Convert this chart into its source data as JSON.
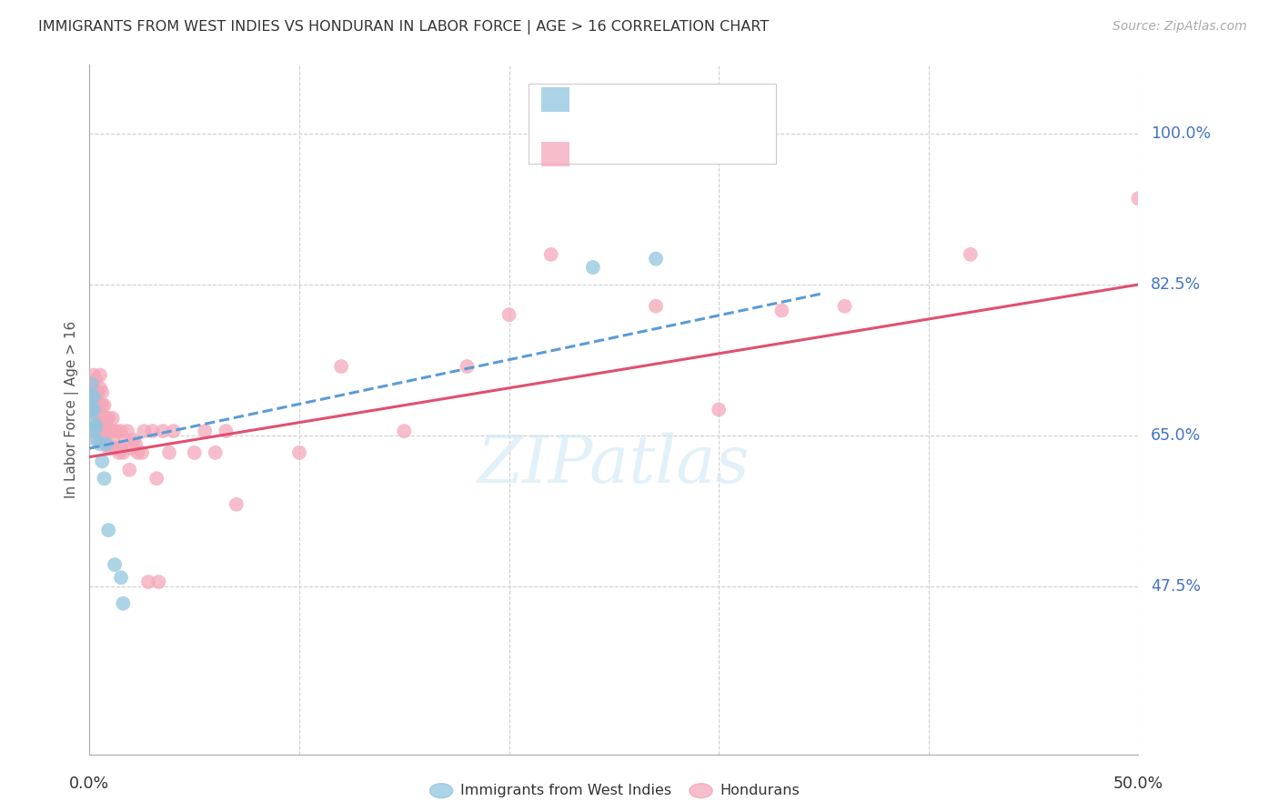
{
  "title": "IMMIGRANTS FROM WEST INDIES VS HONDURAN IN LABOR FORCE | AGE > 16 CORRELATION CHART",
  "source": "Source: ZipAtlas.com",
  "ylabel": "In Labor Force | Age > 16",
  "legend_label1": "Immigrants from West Indies",
  "legend_label2": "Hondurans",
  "ytick_labels": [
    "100.0%",
    "82.5%",
    "65.0%",
    "47.5%"
  ],
  "ytick_values": [
    1.0,
    0.825,
    0.65,
    0.475
  ],
  "xmin": 0.0,
  "xmax": 0.5,
  "ymin": 0.28,
  "ymax": 1.08,
  "blue_color": "#92c5de",
  "pink_color": "#f4a7b9",
  "blue_line_color": "#5b9bd5",
  "pink_line_color": "#e05070",
  "blue_scatter_x": [
    0.001,
    0.001,
    0.001,
    0.002,
    0.002,
    0.002,
    0.002,
    0.003,
    0.003,
    0.005,
    0.006,
    0.007,
    0.008,
    0.009,
    0.012,
    0.015,
    0.016,
    0.24,
    0.27
  ],
  "blue_scatter_y": [
    0.71,
    0.695,
    0.68,
    0.695,
    0.68,
    0.665,
    0.655,
    0.66,
    0.645,
    0.64,
    0.62,
    0.6,
    0.64,
    0.54,
    0.5,
    0.485,
    0.455,
    0.845,
    0.855
  ],
  "pink_scatter_x": [
    0.001,
    0.001,
    0.001,
    0.002,
    0.002,
    0.002,
    0.003,
    0.003,
    0.003,
    0.003,
    0.004,
    0.004,
    0.004,
    0.004,
    0.005,
    0.005,
    0.005,
    0.005,
    0.006,
    0.006,
    0.006,
    0.007,
    0.007,
    0.007,
    0.008,
    0.008,
    0.008,
    0.009,
    0.009,
    0.009,
    0.01,
    0.01,
    0.011,
    0.011,
    0.012,
    0.012,
    0.013,
    0.013,
    0.014,
    0.015,
    0.015,
    0.016,
    0.017,
    0.018,
    0.019,
    0.02,
    0.021,
    0.022,
    0.023,
    0.025,
    0.026,
    0.028,
    0.03,
    0.032,
    0.033,
    0.035,
    0.038,
    0.04,
    0.05,
    0.055,
    0.06,
    0.065,
    0.07,
    0.1,
    0.12,
    0.15,
    0.18,
    0.2,
    0.22,
    0.27,
    0.3,
    0.33,
    0.36,
    0.42,
    0.5
  ],
  "pink_scatter_y": [
    0.71,
    0.695,
    0.68,
    0.72,
    0.7,
    0.685,
    0.715,
    0.695,
    0.675,
    0.655,
    0.7,
    0.68,
    0.665,
    0.645,
    0.72,
    0.705,
    0.685,
    0.665,
    0.7,
    0.685,
    0.655,
    0.685,
    0.665,
    0.645,
    0.67,
    0.655,
    0.64,
    0.67,
    0.655,
    0.635,
    0.655,
    0.635,
    0.67,
    0.645,
    0.655,
    0.635,
    0.655,
    0.635,
    0.63,
    0.655,
    0.635,
    0.63,
    0.645,
    0.655,
    0.61,
    0.635,
    0.645,
    0.64,
    0.63,
    0.63,
    0.655,
    0.48,
    0.655,
    0.6,
    0.48,
    0.655,
    0.63,
    0.655,
    0.63,
    0.655,
    0.63,
    0.655,
    0.57,
    0.63,
    0.73,
    0.655,
    0.73,
    0.79,
    0.86,
    0.8,
    0.68,
    0.795,
    0.8,
    0.86,
    0.925
  ],
  "blue_line_x0": 0.0,
  "blue_line_x1": 0.35,
  "blue_line_y0": 0.635,
  "blue_line_y1": 0.815,
  "pink_line_x0": 0.0,
  "pink_line_x1": 0.5,
  "pink_line_y0": 0.625,
  "pink_line_y1": 0.825,
  "watermark_text": "ZIPatlas",
  "watermark_color": "#d0e8f5"
}
